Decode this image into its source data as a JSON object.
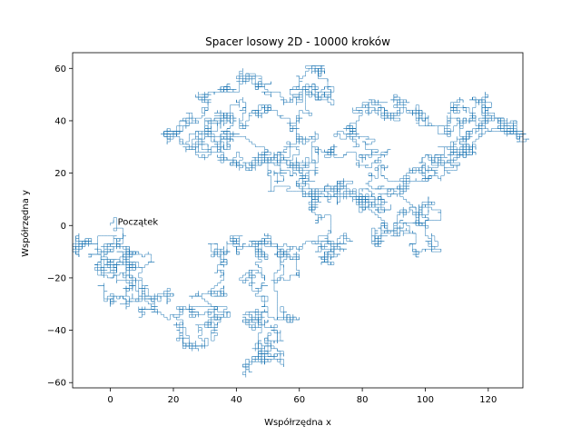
{
  "chart_data": {
    "type": "line",
    "title": "Spacer losowy 2D - 10000 kroków",
    "xlabel": "Współrzędna x",
    "ylabel": "Współrzędna y",
    "xlim": [
      -12,
      131
    ],
    "ylim": [
      -62,
      66
    ],
    "xticks": [
      0,
      20,
      40,
      60,
      80,
      100,
      120
    ],
    "yticks": [
      -60,
      -40,
      -20,
      0,
      20,
      40,
      60
    ],
    "grid": false,
    "steps": 10000,
    "annotation": {
      "text": "Początek",
      "x": 0,
      "y": 0
    },
    "series": [
      {
        "color": "#1f77b4",
        "waypoints": [
          [
            0,
            0
          ],
          [
            3,
            -8
          ],
          [
            -2,
            -16
          ],
          [
            -10,
            -8
          ],
          [
            2,
            -6
          ],
          [
            6,
            -16
          ],
          [
            12,
            -10
          ],
          [
            8,
            -24
          ],
          [
            -2,
            -28
          ],
          [
            10,
            -34
          ],
          [
            14,
            -28
          ],
          [
            6,
            -20
          ],
          [
            0,
            -14
          ],
          [
            18,
            -36
          ],
          [
            26,
            -32
          ],
          [
            22,
            -42
          ],
          [
            30,
            -46
          ],
          [
            34,
            -38
          ],
          [
            28,
            -26
          ],
          [
            36,
            -20
          ],
          [
            32,
            -12
          ],
          [
            40,
            -6
          ],
          [
            46,
            -10
          ],
          [
            42,
            -20
          ],
          [
            48,
            -28
          ],
          [
            44,
            -36
          ],
          [
            50,
            -44
          ],
          [
            44,
            -52
          ],
          [
            52,
            -50
          ],
          [
            48,
            -40
          ],
          [
            56,
            -34
          ],
          [
            52,
            -24
          ],
          [
            60,
            -18
          ],
          [
            54,
            -10
          ],
          [
            62,
            -6
          ],
          [
            68,
            -12
          ],
          [
            74,
            -6
          ],
          [
            70,
            4
          ],
          [
            64,
            10
          ],
          [
            72,
            16
          ],
          [
            78,
            10
          ],
          [
            86,
            2
          ],
          [
            84,
            -8
          ],
          [
            90,
            -2
          ],
          [
            98,
            6
          ],
          [
            102,
            -6
          ],
          [
            96,
            -2
          ],
          [
            92,
            12
          ],
          [
            100,
            18
          ],
          [
            106,
            22
          ],
          [
            112,
            30
          ],
          [
            120,
            36
          ],
          [
            124,
            40
          ],
          [
            118,
            48
          ],
          [
            110,
            44
          ],
          [
            104,
            36
          ],
          [
            98,
            42
          ],
          [
            92,
            48
          ],
          [
            86,
            42
          ],
          [
            80,
            46
          ],
          [
            76,
            38
          ],
          [
            84,
            32
          ],
          [
            78,
            24
          ],
          [
            70,
            28
          ],
          [
            66,
            34
          ],
          [
            60,
            30
          ],
          [
            56,
            24
          ],
          [
            50,
            20
          ],
          [
            46,
            26
          ],
          [
            40,
            22
          ],
          [
            36,
            30
          ],
          [
            30,
            36
          ],
          [
            24,
            30
          ],
          [
            18,
            34
          ],
          [
            24,
            40
          ],
          [
            30,
            48
          ],
          [
            38,
            52
          ],
          [
            46,
            56
          ],
          [
            54,
            50
          ],
          [
            60,
            56
          ],
          [
            66,
            58
          ],
          [
            70,
            50
          ],
          [
            64,
            42
          ],
          [
            58,
            36
          ],
          [
            50,
            44
          ],
          [
            42,
            48
          ],
          [
            36,
            42
          ],
          [
            30,
            38
          ],
          [
            38,
            34
          ],
          [
            46,
            30
          ],
          [
            54,
            24
          ],
          [
            62,
            20
          ],
          [
            68,
            14
          ],
          [
            74,
            18
          ],
          [
            80,
            12
          ],
          [
            86,
            8
          ],
          [
            92,
            14
          ],
          [
            96,
            22
          ],
          [
            104,
            26
          ],
          [
            112,
            40
          ],
          [
            120,
            44
          ],
          [
            124,
            38
          ],
          [
            116,
            32
          ],
          [
            108,
            28
          ],
          [
            100,
            20
          ]
        ]
      }
    ]
  }
}
